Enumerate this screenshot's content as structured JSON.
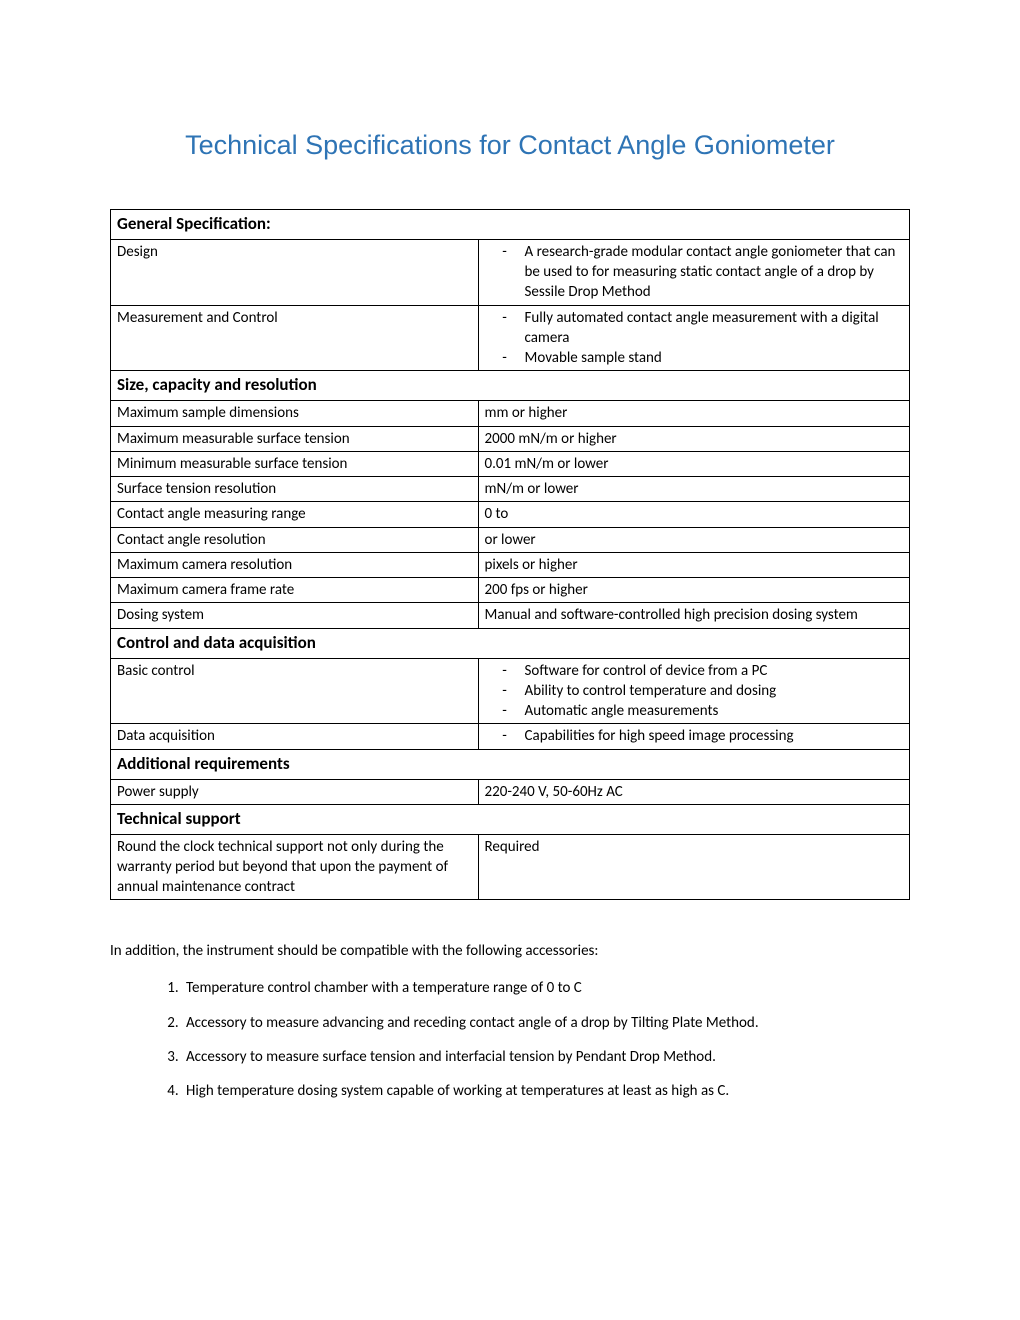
{
  "title": "Technical Specifications for Contact Angle Goniometer",
  "colors": {
    "title_color": "#2e74b5",
    "text_color": "#000000",
    "border_color": "#000000",
    "background": "#ffffff"
  },
  "table": {
    "sections": [
      {
        "header": "General Specification:",
        "rows": [
          {
            "label": "Design",
            "bullets": [
              "A research-grade modular contact angle goniometer that can be used to for measuring static contact angle of a drop by Sessile Drop Method"
            ]
          },
          {
            "label": "Measurement and Control",
            "bullets": [
              "Fully automated contact angle measurement with a digital camera",
              "Movable sample stand"
            ]
          }
        ]
      },
      {
        "header": "Size, capacity and resolution",
        "rows": [
          {
            "label": "Maximum sample dimensions",
            "value": " mm or higher"
          },
          {
            "label": "Maximum measurable surface tension",
            "value": "2000 mN/m or higher"
          },
          {
            "label": "Minimum measurable surface tension",
            "value": "0.01 mN/m or lower"
          },
          {
            "label": "Surface tension resolution",
            "value": " mN/m or lower"
          },
          {
            "label": "Contact angle measuring range",
            "value": "0 to"
          },
          {
            "label": "Contact angle resolution",
            "value": " or lower"
          },
          {
            "label": "Maximum camera resolution",
            "value": " pixels or higher"
          },
          {
            "label": "Maximum camera frame rate",
            "value": "200 fps or higher"
          },
          {
            "label": "Dosing system",
            "value": "Manual and software-controlled high precision dosing system"
          }
        ]
      },
      {
        "header": "Control and data acquisition",
        "rows": [
          {
            "label": "Basic control",
            "bullets": [
              "Software for control of device from a PC",
              "Ability to control temperature and dosing",
              "Automatic angle measurements"
            ]
          },
          {
            "label": "Data acquisition",
            "bullets": [
              "Capabilities for high speed image processing"
            ]
          }
        ]
      },
      {
        "header": "Additional requirements",
        "rows": [
          {
            "label": "Power supply",
            "value": "220-240 V, 50-60Hz AC"
          }
        ]
      },
      {
        "header": "Technical support",
        "rows": [
          {
            "label": "Round the clock technical support not only during the warranty period but beyond that upon the payment of annual maintenance contract",
            "value": "Required"
          }
        ]
      }
    ]
  },
  "post_note": "In addition, the instrument should be compatible with the following accessories:",
  "accessories": [
    "Temperature control chamber with a temperature range of 0 to C",
    "Accessory to measure advancing and receding contact angle of a drop by Tilting Plate Method.",
    "Accessory to measure surface tension and interfacial tension by Pendant Drop Method.",
    "High temperature dosing system capable of working at temperatures at least as high as C."
  ]
}
